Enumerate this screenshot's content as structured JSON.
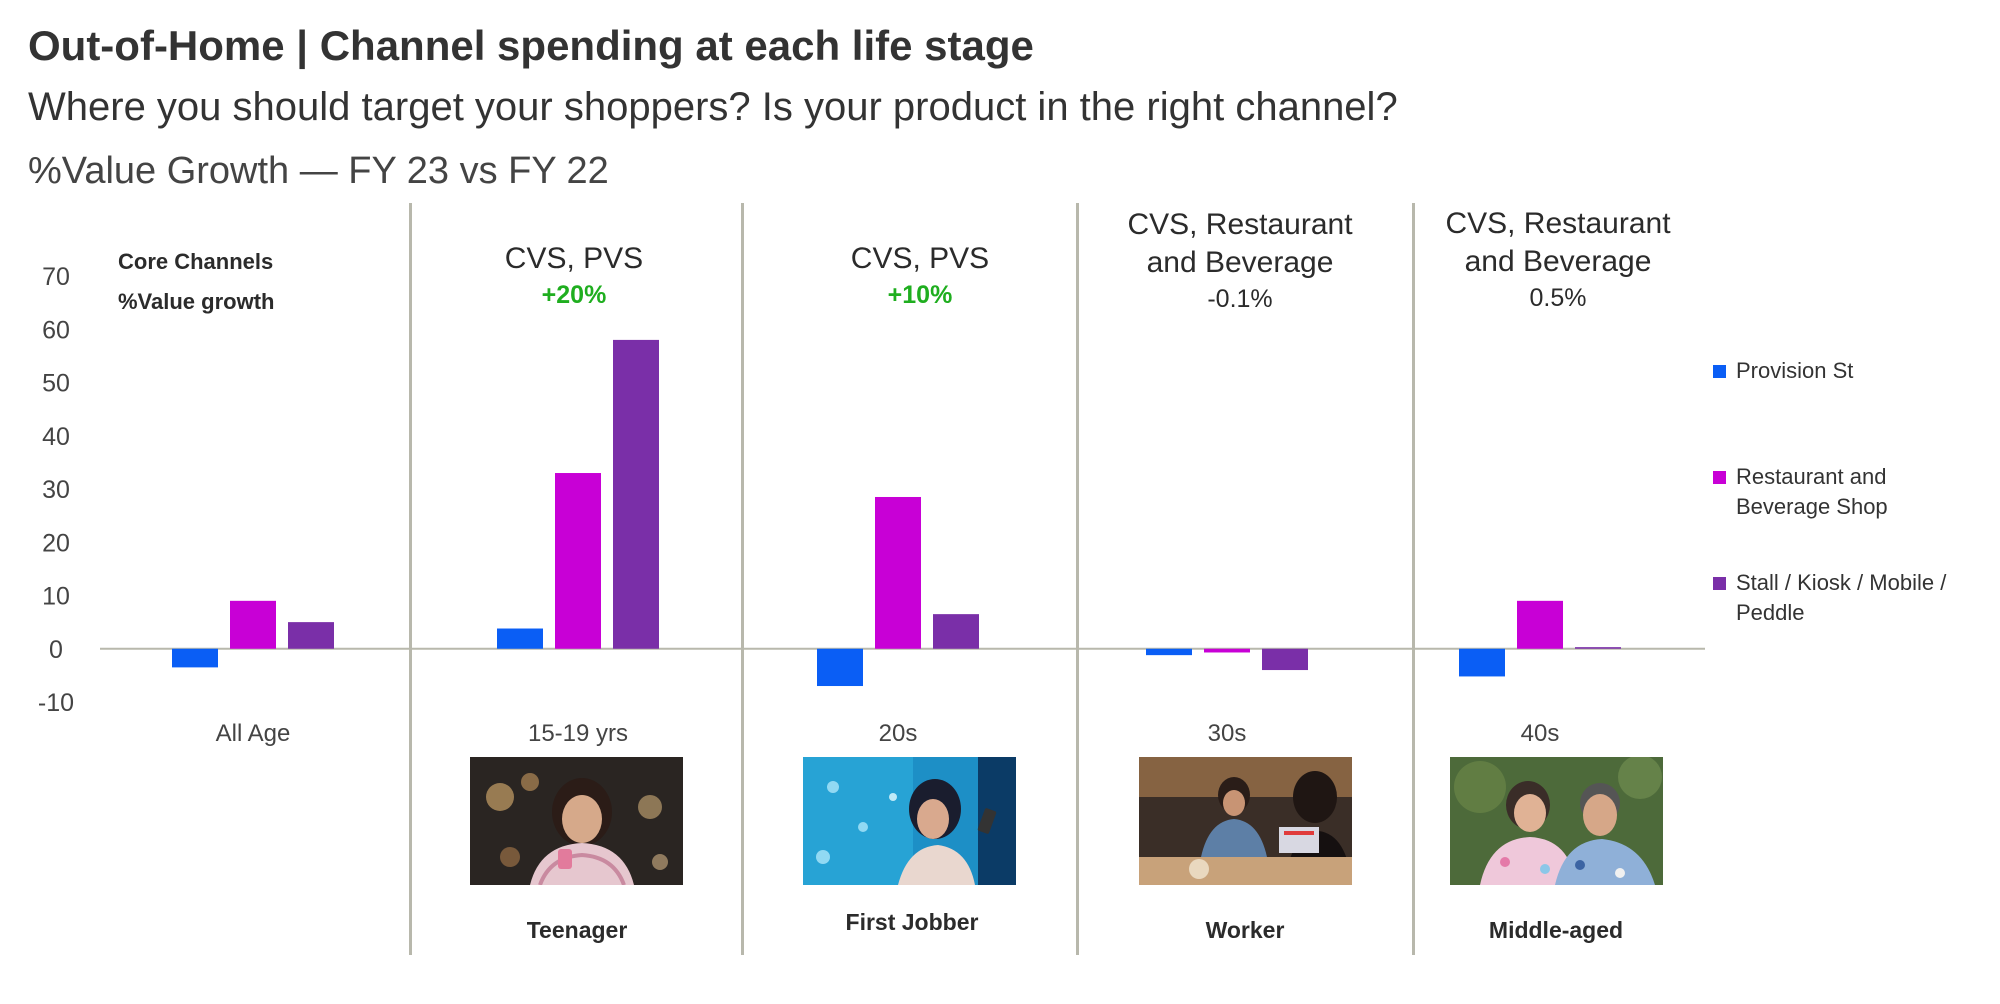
{
  "header": {
    "title": "Out-of-Home  | Channel spending at each life stage",
    "subtitle": "Where you should target your shoppers?  Is your product in the right channel?",
    "metric": "%Value Growth — FY 23 vs FY 22"
  },
  "core_label": {
    "line1": "Core Channels",
    "line2": "%Value growth"
  },
  "panels": [
    {
      "title": "",
      "value": "",
      "persona": ""
    },
    {
      "title": "CVS, PVS",
      "value": "+20%",
      "persona": "Teenager",
      "photo_icon": "teenager-photo"
    },
    {
      "title": "CVS, PVS",
      "value": "+10%",
      "persona": "First Jobber",
      "photo_icon": "first-jobber-photo"
    },
    {
      "title": "CVS, Restaurant and Beverage",
      "value": "-0.1%",
      "persona": "Worker",
      "photo_icon": "worker-photo"
    },
    {
      "title": "CVS, Restaurant and Beverage",
      "value": "0.5%",
      "persona": "Middle-aged",
      "photo_icon": "middle-aged-photo"
    }
  ],
  "legend": [
    {
      "label": "Provision St",
      "color": "#0a5ef5"
    },
    {
      "label": "Restaurant and Beverage Shop",
      "color": "#c800d6"
    },
    {
      "label": "Stall / Kiosk / Mobile / Peddle",
      "color": "#7a2fa8"
    }
  ],
  "colors": {
    "positive": "#1fae1f",
    "axis": "#b8b8ac",
    "divider": "#b8b8ac"
  },
  "chart_data": {
    "type": "bar",
    "categories": [
      "All Age",
      "15-19 yrs",
      "20s",
      "30s",
      "40s"
    ],
    "series": [
      {
        "name": "Provision St",
        "values": [
          -3.5,
          3.8,
          -7,
          -1.2,
          -5.2
        ]
      },
      {
        "name": "Restaurant and Beverage Shop",
        "values": [
          9,
          33,
          28.5,
          -0.7,
          9
        ]
      },
      {
        "name": "Stall / Kiosk / Mobile / Peddle",
        "values": [
          5,
          58,
          6.5,
          -4,
          0.3
        ]
      }
    ],
    "yticks": [
      "70",
      "60",
      "50",
      "40",
      "30",
      "20",
      "10",
      "0",
      "-10"
    ],
    "ylim": [
      -10,
      70
    ],
    "grid": false,
    "legend_position": "right"
  }
}
